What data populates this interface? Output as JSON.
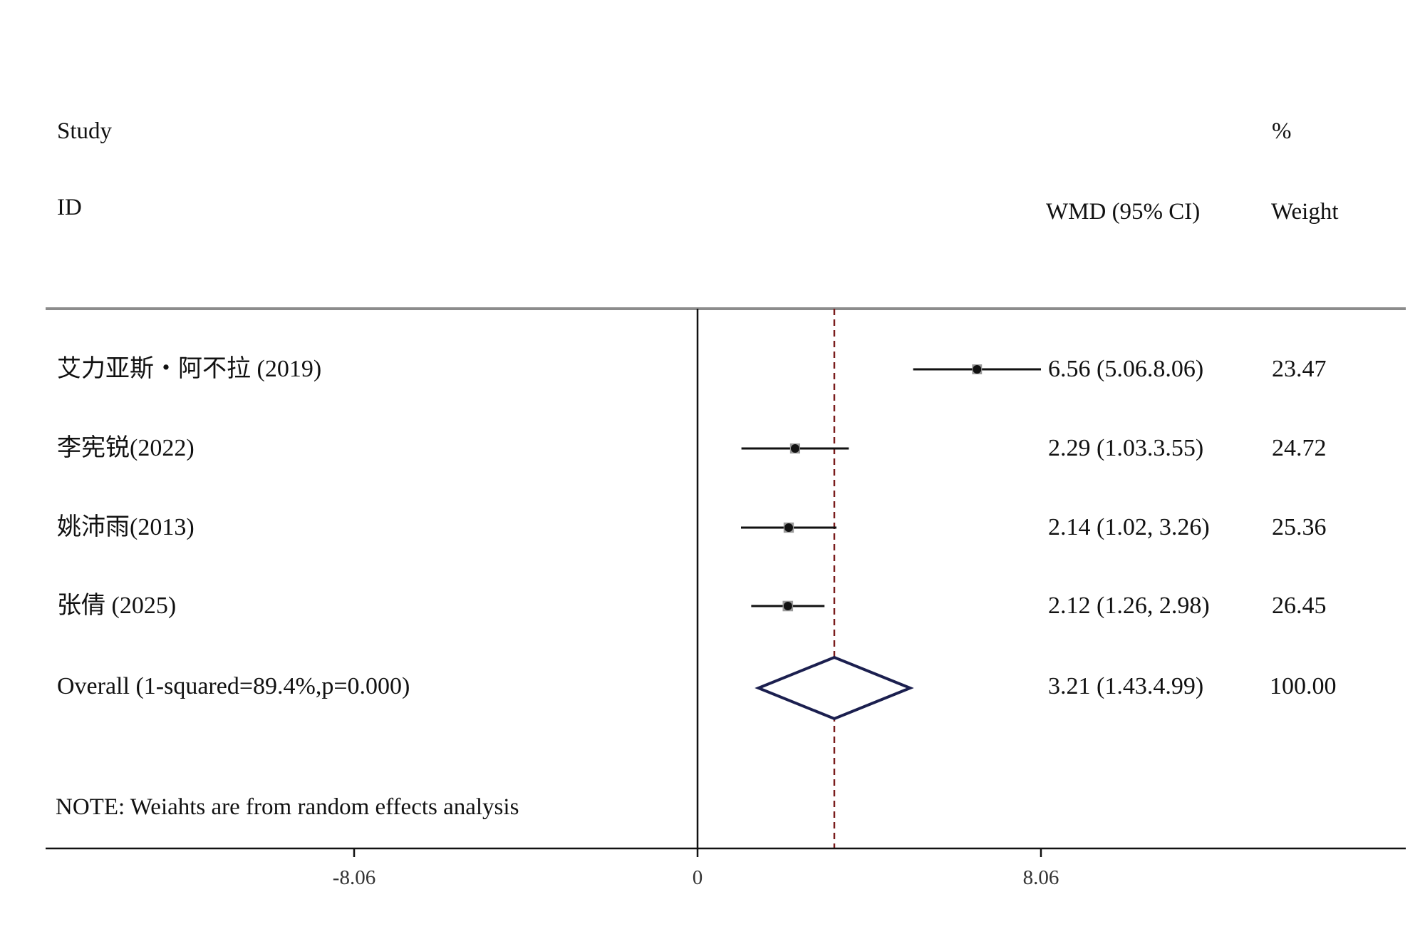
{
  "chart_data": {
    "type": "forest",
    "headers": {
      "study": "Study",
      "id": "ID",
      "effect": "WMD (95% CI)",
      "weight_pct": "%",
      "weight": "Weight"
    },
    "studies": [
      {
        "label": "艾力亚斯・阿不拉 (2019)",
        "estimate": 6.56,
        "ci": [
          5.06,
          8.06
        ],
        "ci_text": "6.56 (5.06.8.06)",
        "weight": 23.47,
        "weight_text": "23.47"
      },
      {
        "label": "李宪锐(2022)",
        "estimate": 2.29,
        "ci": [
          1.03,
          3.55
        ],
        "ci_text": "2.29 (1.03.3.55)",
        "weight": 24.72,
        "weight_text": "24.72"
      },
      {
        "label": "姚沛雨(2013)",
        "estimate": 2.14,
        "ci": [
          1.02,
          3.26
        ],
        "ci_text": "2.14 (1.02, 3.26)",
        "weight": 25.36,
        "weight_text": "25.36"
      },
      {
        "label": "张倩 (2025)",
        "estimate": 2.12,
        "ci": [
          1.26,
          2.98
        ],
        "ci_text": "2.12 (1.26, 2.98)",
        "weight": 26.45,
        "weight_text": "26.45"
      }
    ],
    "overall": {
      "label": "Overall (1-squared=89.4%,p=0.000)",
      "estimate": 3.21,
      "ci": [
        1.43,
        4.99
      ],
      "ci_text": "3.21 (1.43.4.99)",
      "weight_text": "100.00"
    },
    "note": "NOTE: Weiahts are from random effects analysis",
    "x_ticks": [
      {
        "value": -8.06,
        "label": "-8.06"
      },
      {
        "value": 0,
        "label": "0"
      },
      {
        "value": 8.06,
        "label": "8.06"
      }
    ],
    "colors": {
      "ci_line": "#111111",
      "point": "#111111",
      "weight_box": "#9a9a9a",
      "diamond": "#1b1f4f",
      "overall_line": "#7a1c1c",
      "separator": "#8c8c8c"
    }
  }
}
